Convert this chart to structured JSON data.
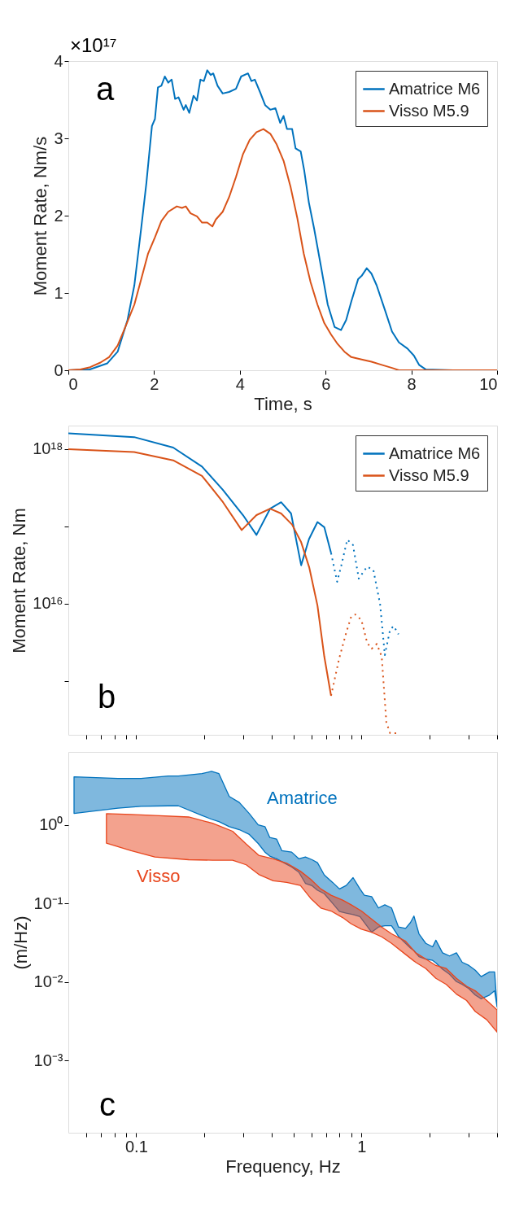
{
  "chart_data": [
    {
      "type": "line",
      "xlabel": "Time, s",
      "ylabel": "Moment Rate, Nm/s",
      "xlim": [
        0,
        10
      ],
      "ylim": [
        0,
        4
      ],
      "xticks": [
        0,
        2,
        4,
        6,
        8,
        10
      ],
      "yticks": [
        0,
        1,
        2,
        3,
        4
      ],
      "grid": false,
      "legend": "top right",
      "annotations": [
        "a",
        "×10¹⁷"
      ],
      "series": [
        {
          "name": "Amatrice M6",
          "color": "#0072bd",
          "x": [
            0,
            0.5,
            0.91,
            1.15,
            1.38,
            1.54,
            1.7,
            1.82,
            1.95,
            2.02,
            2.09,
            2.17,
            2.25,
            2.33,
            2.41,
            2.49,
            2.57,
            2.69,
            2.74,
            2.82,
            2.92,
            3.0,
            3.08,
            3.16,
            3.24,
            3.32,
            3.38,
            3.48,
            3.6,
            3.75,
            3.91,
            4.03,
            4.19,
            4.27,
            4.35,
            4.47,
            4.59,
            4.71,
            4.83,
            4.94,
            5.02,
            5.1,
            5.22,
            5.3,
            5.42,
            5.5,
            5.61,
            5.73,
            5.89,
            6.05,
            6.21,
            6.36,
            6.48,
            6.6,
            6.76,
            6.84,
            6.96,
            7.07,
            7.19,
            7.39,
            7.55,
            7.71,
            7.91,
            8.06,
            8.18,
            8.34,
            8.97,
            10
          ],
          "values": [
            0,
            0.01,
            0.09,
            0.24,
            0.65,
            1.1,
            1.84,
            2.42,
            3.16,
            3.25,
            3.66,
            3.68,
            3.8,
            3.72,
            3.76,
            3.51,
            3.53,
            3.37,
            3.43,
            3.33,
            3.55,
            3.49,
            3.76,
            3.74,
            3.88,
            3.82,
            3.84,
            3.68,
            3.58,
            3.6,
            3.64,
            3.8,
            3.84,
            3.74,
            3.76,
            3.6,
            3.43,
            3.37,
            3.39,
            3.2,
            3.29,
            3.12,
            3.12,
            2.87,
            2.83,
            2.59,
            2.17,
            1.84,
            1.35,
            0.85,
            0.56,
            0.52,
            0.65,
            0.89,
            1.18,
            1.22,
            1.32,
            1.25,
            1.1,
            0.77,
            0.5,
            0.36,
            0.28,
            0.19,
            0.07,
            0.01,
            0,
            0
          ]
        },
        {
          "name": "Visso M5.9",
          "color": "#d95319",
          "x": [
            0,
            0.28,
            0.51,
            0.75,
            0.95,
            1.15,
            1.3,
            1.54,
            1.7,
            1.86,
            2.02,
            2.17,
            2.33,
            2.53,
            2.65,
            2.74,
            2.85,
            3.0,
            3.12,
            3.24,
            3.36,
            3.44,
            3.6,
            3.75,
            3.91,
            4.07,
            4.23,
            4.39,
            4.55,
            4.71,
            4.86,
            5.02,
            5.18,
            5.34,
            5.49,
            5.65,
            5.81,
            5.97,
            6.13,
            6.28,
            6.44,
            6.6,
            6.84,
            7.07,
            7.31,
            7.55,
            7.71,
            10
          ],
          "values": [
            0,
            0.01,
            0.04,
            0.1,
            0.17,
            0.32,
            0.52,
            0.85,
            1.18,
            1.51,
            1.72,
            1.93,
            2.05,
            2.12,
            2.1,
            2.12,
            2.03,
            1.99,
            1.91,
            1.91,
            1.86,
            1.95,
            2.05,
            2.24,
            2.5,
            2.79,
            2.98,
            3.08,
            3.12,
            3.06,
            2.92,
            2.71,
            2.38,
            1.97,
            1.51,
            1.14,
            0.85,
            0.61,
            0.46,
            0.34,
            0.24,
            0.17,
            0.14,
            0.11,
            0.07,
            0.03,
            0,
            0
          ]
        }
      ]
    },
    {
      "type": "line",
      "ylabel": "Moment Rate, Nm",
      "log": "xy",
      "xlim": [
        0.05,
        4
      ],
      "ylim": [
        200000000000000.0,
        2e+18
      ],
      "tick_labels": "y",
      "grid": false,
      "legend": "top right",
      "annotations": [
        "b"
      ],
      "xticks": [
        {
          "value": 0.06,
          "label": null
        },
        {
          "value": 0.07,
          "label": null
        },
        {
          "value": 0.08,
          "label": null
        },
        {
          "value": 0.09,
          "label": null
        },
        0.1,
        {
          "value": 0.2,
          "label": null
        },
        {
          "value": 0.3,
          "label": null
        },
        {
          "value": 0.4,
          "label": null
        },
        {
          "value": 0.5,
          "label": null
        },
        {
          "value": 0.6,
          "label": null
        },
        {
          "value": 0.7,
          "label": null
        },
        {
          "value": 0.8,
          "label": null
        },
        {
          "value": 0.9,
          "label": null
        },
        1,
        {
          "value": 2,
          "label": null
        },
        {
          "value": 3,
          "label": null
        },
        {
          "value": 4,
          "label": null
        }
      ],
      "yticks": [
        {
          "value": 1000000000000000.0,
          "label": null
        },
        {
          "value": 1e+16,
          "label": "10¹⁶"
        },
        {
          "value": 1e+17,
          "label": null
        },
        {
          "value": 1e+18,
          "label": "10¹⁸"
        }
      ],
      "series": [
        {
          "name": "Amatrice M6",
          "color": "#0072bd",
          "x": [
            0.05,
            0.098,
            0.146,
            0.196,
            0.242,
            0.298,
            0.342,
            0.393,
            0.44,
            0.487,
            0.54,
            0.585,
            0.638,
            0.684,
            0.733
          ],
          "values": [
            1.59e+18,
            1.42e+18,
            1.04e+18,
            5.9e+17,
            2.97e+17,
            1.39e+17,
            7.7e+16,
            1.68e+17,
            2.04e+17,
            1.46e+17,
            3.12e+16,
            6.8e+16,
            1.13e+17,
            9.7e+16,
            4.5e+16
          ]
        },
        {
          "name": "Visso M5.9",
          "color": "#d95319",
          "x": [
            0.05,
            0.098,
            0.146,
            0.196,
            0.243,
            0.294,
            0.342,
            0.393,
            0.44,
            0.492,
            0.54,
            0.587,
            0.638,
            0.684,
            0.733
          ],
          "values": [
            9.9e+17,
            9.1e+17,
            7.1e+17,
            4.47e+17,
            2.04e+17,
            8.9e+16,
            1.39e+17,
            1.68e+17,
            1.46e+17,
            1.05e+17,
            6.2e+16,
            2.9e+16,
            9400000000000000.0,
            2060000000000000.0,
            640000000000000.0
          ]
        },
        {
          "color": "#0072bd",
          "line_style": "dotted",
          "x": [
            0.733,
            0.78,
            0.813,
            0.865,
            0.917,
            0.973,
            1.06,
            1.13,
            1.21,
            1.27,
            1.34,
            1.39,
            1.46
          ],
          "values": [
            4.5e+16,
            1.91e+16,
            3.06e+16,
            6.7e+16,
            5.7e+16,
            2.1e+16,
            3e+16,
            2.7e+16,
            9800000000000000.0,
            2150000000000000.0,
            4600000000000000.0,
            5100000000000000.0,
            4000000000000000.0
          ]
        },
        {
          "color": "#d95319",
          "line_style": "dotted",
          "x": [
            0.733,
            0.797,
            0.856,
            0.9,
            0.94,
            1.0,
            1.06,
            1.11,
            1.17,
            1.23,
            1.29,
            1.34,
            1.44
          ],
          "values": [
            640000000000000.0,
            1960000000000000.0,
            4200000000000000.0,
            6700000000000000.0,
            7200000000000000.0,
            6100000000000000.0,
            3100000000000000.0,
            2600000000000000.0,
            3000000000000000.0,
            2060000000000000.0,
            290000000000000.0,
            210000000000000.0,
            210000000000000.0
          ]
        }
      ]
    },
    {
      "type": "area",
      "xlabel": "Frequency, Hz",
      "ylabel": "(m/Hz)",
      "log": "xy",
      "xlim": [
        0.05,
        4
      ],
      "ylim": [
        0.00012,
        8.5
      ],
      "grid": false,
      "annotations": [
        "c"
      ],
      "xticks": [
        {
          "value": 0.06,
          "label": null
        },
        {
          "value": 0.07,
          "label": null
        },
        {
          "value": 0.08,
          "label": null
        },
        {
          "value": 0.09,
          "label": null
        },
        {
          "value": 0.1,
          "label": "0.1"
        },
        {
          "value": 0.2,
          "label": null
        },
        {
          "value": 0.3,
          "label": null
        },
        {
          "value": 0.4,
          "label": null
        },
        {
          "value": 0.5,
          "label": null
        },
        {
          "value": 0.6,
          "label": null
        },
        {
          "value": 0.7,
          "label": null
        },
        {
          "value": 0.8,
          "label": null
        },
        {
          "value": 0.9,
          "label": null
        },
        1,
        {
          "value": 2,
          "label": null
        },
        {
          "value": 3,
          "label": null
        },
        {
          "value": 4,
          "label": null
        }
      ],
      "yticks": [
        {
          "value": 0.001,
          "label": "10⁻³"
        },
        {
          "value": 0.01,
          "label": "10⁻²"
        },
        {
          "value": 0.1,
          "label": "10⁻¹"
        },
        {
          "value": 1,
          "label": "10⁰"
        }
      ],
      "series": [
        {
          "name": "Amatrice",
          "color": "#0072bd",
          "x": [
            0.053,
            0.083,
            0.105,
            0.139,
            0.154,
            0.196,
            0.216,
            0.233,
            0.259,
            0.287,
            0.318,
            0.348,
            0.373,
            0.392,
            0.42,
            0.443,
            0.49,
            0.527,
            0.564,
            0.604,
            0.638,
            0.684,
            0.745,
            0.799,
            0.856,
            0.918,
            0.985,
            1.03,
            1.11,
            1.19,
            1.27,
            1.36,
            1.46,
            1.57,
            1.65,
            1.71,
            1.8,
            1.93,
            2.07,
            2.14,
            2.29,
            2.46,
            2.64,
            2.8,
            3.0,
            3.2,
            3.4,
            3.7,
            3.9,
            4.0
          ],
          "values": [
            null,
            null,
            null,
            null,
            null,
            null,
            null,
            null,
            null,
            null,
            null,
            null,
            null,
            null,
            null,
            null,
            null,
            null,
            null,
            null,
            null,
            null,
            null,
            null,
            null,
            null,
            null,
            null,
            null,
            null,
            null,
            null,
            null,
            null,
            null,
            null,
            null,
            null,
            null,
            null,
            null,
            null,
            null,
            null,
            null,
            null,
            null,
            null,
            null,
            null
          ],
          "upper": [
            4.1,
            3.9,
            3.9,
            4.2,
            4.2,
            4.5,
            4.8,
            4.5,
            2.3,
            1.93,
            1.39,
            1.0,
            0.95,
            0.69,
            0.66,
            0.47,
            0.45,
            0.37,
            0.39,
            0.36,
            0.33,
            0.23,
            0.185,
            0.153,
            0.169,
            0.213,
            0.153,
            0.127,
            0.122,
            0.0875,
            0.096,
            0.0875,
            0.05,
            0.048,
            0.057,
            0.069,
            0.041,
            0.031,
            0.028,
            0.034,
            0.0235,
            0.0214,
            0.0235,
            0.0178,
            0.0162,
            0.0141,
            0.0117,
            0.0134,
            0.0134,
            0.0048
          ],
          "lower": [
            1.4,
            1.63,
            1.72,
            1.75,
            1.75,
            1.32,
            1.18,
            1.1,
            0.95,
            0.87,
            0.755,
            0.58,
            0.45,
            0.4,
            0.37,
            0.34,
            0.29,
            0.25,
            0.18,
            0.168,
            0.147,
            0.133,
            0.1,
            0.079,
            0.075,
            0.072,
            0.068,
            0.057,
            0.043,
            0.05,
            0.052,
            0.052,
            0.038,
            0.031,
            0.027,
            0.025,
            0.021,
            0.0195,
            0.0188,
            0.0175,
            0.0145,
            0.0125,
            0.0101,
            0.0093,
            0.0082,
            0.0068,
            0.0061,
            0.0068,
            0.0077,
            0.0048
          ]
        },
        {
          "name": "Visso",
          "color": "#e8461d",
          "x": [
            0.0738,
            0.095,
            0.121,
            0.171,
            0.218,
            0.268,
            0.308,
            0.35,
            0.406,
            0.466,
            0.536,
            0.595,
            0.66,
            0.733,
            0.825,
            0.9,
            1.0,
            1.11,
            1.23,
            1.36,
            1.57,
            1.74,
            1.93,
            2.14,
            2.38,
            2.64,
            2.93,
            3.2,
            3.6,
            4.0
          ],
          "values": [
            null,
            null,
            null,
            null,
            null,
            null,
            null,
            null,
            null,
            null,
            null,
            null,
            null,
            null,
            null,
            null,
            null,
            null,
            null,
            null,
            null,
            null,
            null,
            null,
            null,
            null,
            null,
            null,
            null,
            null
          ],
          "upper": [
            1.39,
            1.36,
            1.32,
            1.26,
            1.05,
            0.83,
            0.57,
            0.41,
            0.37,
            0.325,
            0.257,
            0.203,
            0.153,
            0.127,
            0.11,
            0.096,
            0.08,
            0.063,
            0.05,
            0.041,
            0.033,
            0.0235,
            0.0196,
            0.0162,
            0.0148,
            0.0111,
            0.0088,
            0.0077,
            0.0058,
            0.0044
          ],
          "lower": [
            0.586,
            0.47,
            0.39,
            0.36,
            0.355,
            0.355,
            0.31,
            0.234,
            0.194,
            0.185,
            0.169,
            0.116,
            0.0875,
            0.08,
            0.066,
            0.055,
            0.047,
            0.043,
            0.0375,
            0.031,
            0.0224,
            0.0178,
            0.0148,
            0.0111,
            0.0093,
            0.007,
            0.0058,
            0.0042,
            0.0033,
            0.0023
          ]
        }
      ]
    }
  ]
}
